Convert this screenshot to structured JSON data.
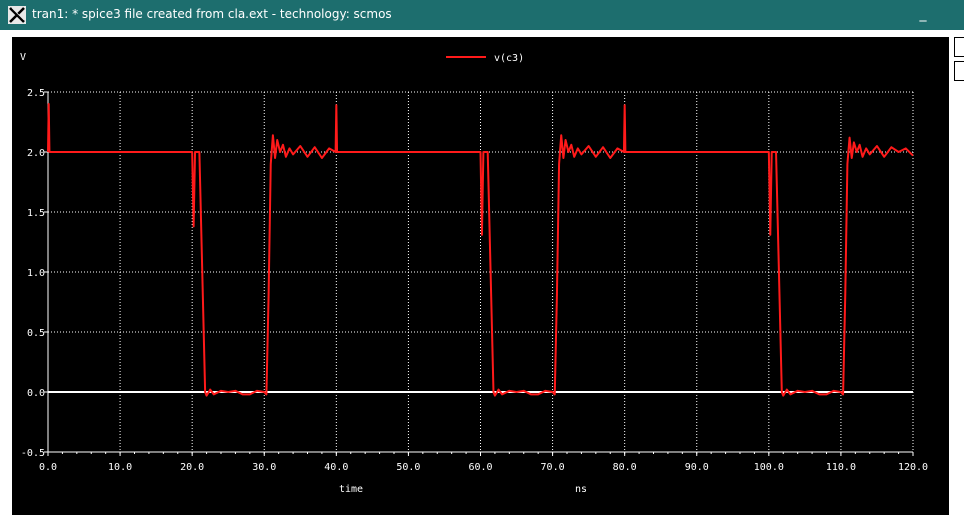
{
  "window": {
    "title": "tran1: * spice3 file created from cla.ext - technology: scmos",
    "minimize_label": "_"
  },
  "colors": {
    "titlebar": "#1d6e6e",
    "plot_background": "#000000",
    "trace": "#ff1a1a",
    "grid": "#ffffff"
  },
  "chart_data": {
    "type": "line",
    "ylabel": "V",
    "xlabel": "time",
    "xunit": "ns",
    "xlim": [
      0,
      120
    ],
    "ylim": [
      -0.5,
      2.5
    ],
    "xticks": [
      "0.0",
      "10.0",
      "20.0",
      "30.0",
      "40.0",
      "50.0",
      "60.0",
      "70.0",
      "80.0",
      "90.0",
      "100.0",
      "110.0",
      "120.0"
    ],
    "yticks": [
      "2.5",
      "2.0",
      "1.5",
      "1.0",
      "0.5",
      "0.0",
      "-0.5"
    ],
    "grid": true,
    "legend_position": "top-center",
    "series": [
      {
        "name": "v(c3)",
        "x": [
          0,
          0.1,
          0.2,
          10,
          20,
          20.2,
          20.4,
          20.6,
          21.0,
          21.4,
          21.8,
          22.0,
          22.5,
          23,
          24,
          25,
          26,
          27,
          28,
          29,
          30,
          30.3,
          30.6,
          30.9,
          31.2,
          31.5,
          31.8,
          32.2,
          32.6,
          33,
          33.5,
          34,
          35,
          36,
          37,
          38,
          39,
          39.9,
          40.0,
          40.1,
          40.2,
          50,
          60,
          60.2,
          60.4,
          60.6,
          61.0,
          61.4,
          61.8,
          62.0,
          62.5,
          63,
          64,
          65,
          66,
          67,
          68,
          69,
          70,
          70.3,
          70.6,
          70.9,
          71.2,
          71.5,
          71.8,
          72.2,
          72.6,
          73,
          73.5,
          74,
          75,
          76,
          77,
          78,
          79,
          79.9,
          80.0,
          80.1,
          80.2,
          90,
          100,
          100.2,
          100.4,
          100.6,
          101.0,
          101.4,
          101.8,
          102.0,
          102.5,
          103,
          104,
          105,
          106,
          107,
          108,
          109,
          110,
          110.3,
          110.6,
          110.9,
          111.2,
          111.5,
          111.8,
          112.2,
          112.6,
          113,
          113.5,
          114,
          115,
          116,
          117,
          118,
          119,
          120
        ],
        "values": [
          2.0,
          2.4,
          2.0,
          2.0,
          2.0,
          1.38,
          2.0,
          2.0,
          2.0,
          1.0,
          0.0,
          -0.03,
          0.02,
          -0.02,
          0.01,
          0.0,
          0.01,
          -0.02,
          -0.02,
          0.01,
          0.0,
          -0.02,
          0.8,
          1.9,
          2.14,
          1.95,
          2.1,
          2.0,
          2.06,
          1.96,
          2.03,
          1.98,
          2.05,
          1.96,
          2.04,
          1.95,
          2.03,
          2.0,
          2.39,
          2.0,
          2.0,
          2.0,
          2.0,
          1.31,
          2.0,
          2.0,
          2.0,
          1.0,
          0.0,
          -0.03,
          0.02,
          -0.02,
          0.01,
          0.0,
          0.01,
          -0.02,
          -0.02,
          0.01,
          0.0,
          -0.02,
          0.8,
          1.9,
          2.14,
          1.95,
          2.1,
          2.0,
          2.06,
          1.96,
          2.03,
          1.98,
          2.05,
          1.96,
          2.04,
          1.95,
          2.03,
          2.0,
          2.39,
          2.0,
          2.0,
          2.0,
          2.0,
          1.31,
          2.0,
          2.0,
          2.0,
          1.0,
          0.0,
          -0.03,
          0.02,
          -0.02,
          0.01,
          0.0,
          0.01,
          -0.02,
          -0.02,
          0.01,
          0.0,
          -0.02,
          0.8,
          1.9,
          2.12,
          1.95,
          2.08,
          2.0,
          2.06,
          1.96,
          2.03,
          1.98,
          2.05,
          1.96,
          2.04,
          2.0,
          2.03,
          1.97
        ]
      }
    ]
  }
}
